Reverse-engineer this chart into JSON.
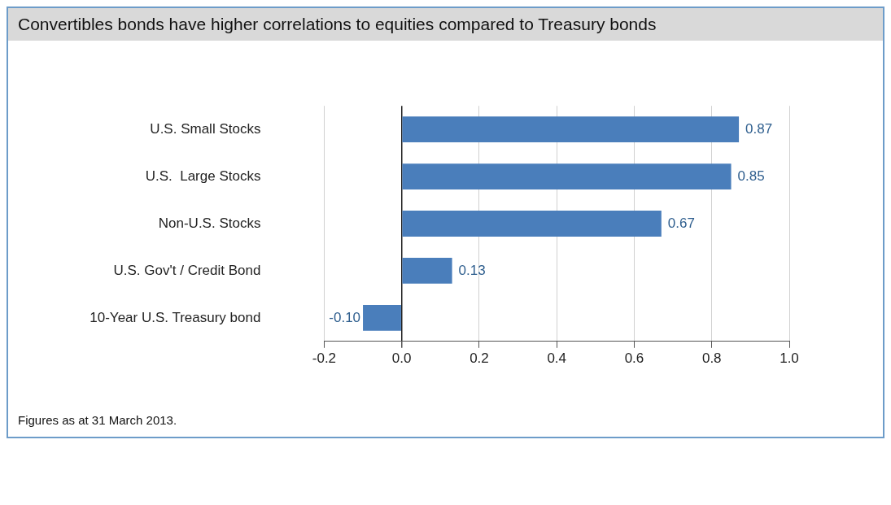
{
  "chart_data": {
    "type": "bar",
    "orientation": "horizontal",
    "title": "Convertibles bonds have higher correlations to equities compared to Treasury bonds",
    "categories": [
      "U.S. Small Stocks",
      "U.S.  Large Stocks",
      "Non-U.S. Stocks",
      "U.S. Gov't / Credit Bond",
      "10-Year U.S. Treasury bond"
    ],
    "values": [
      0.87,
      0.85,
      0.67,
      0.13,
      -0.1
    ],
    "value_labels": [
      "0.87",
      "0.85",
      "0.67",
      "0.13",
      "-0.10"
    ],
    "color": "#4a7ebb",
    "xlim": [
      -0.2,
      1.0
    ],
    "xticks": [
      -0.2,
      {
        "value": 0,
        "label": "0.0"
      },
      0.2,
      0.4,
      0.6,
      0.8,
      {
        "value": 1,
        "label": "1.0"
      }
    ],
    "grid": "x",
    "legend": false,
    "annotations": [
      "Figures as at 31 March 2013."
    ]
  }
}
